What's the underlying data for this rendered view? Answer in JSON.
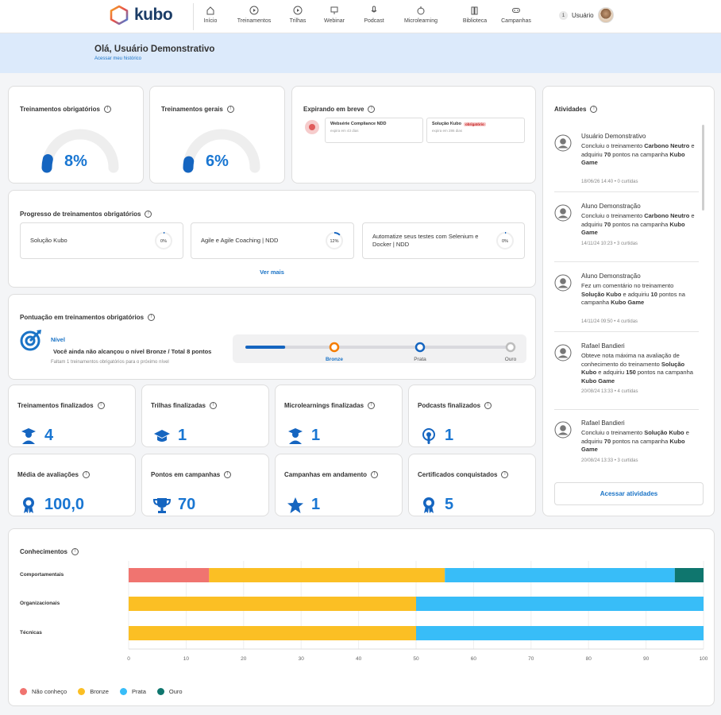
{
  "brand": {
    "name": "kubo"
  },
  "nav": [
    {
      "label": "Início",
      "icon": "home-icon"
    },
    {
      "label": "Treinamentos",
      "icon": "play-icon"
    },
    {
      "label": "Trilhas",
      "icon": "play-icon"
    },
    {
      "label": "Webinar",
      "icon": "webinar-icon"
    },
    {
      "label": "Podcast",
      "icon": "microphone-icon"
    },
    {
      "label": "Microlearning",
      "icon": "microlearning-icon"
    },
    {
      "label": "Biblioteca",
      "icon": "library-icon"
    },
    {
      "label": "Campanhas",
      "icon": "gamepad-icon"
    }
  ],
  "user": {
    "notifications": "1",
    "name": "Usuário"
  },
  "hero": {
    "greeting": "Olá, Usuário Demonstrativo",
    "history_link": "Acessar meu histórico"
  },
  "mandatory": {
    "title": "Treinamentos obrigatórios",
    "percent_label": "8%",
    "progress": 0.08
  },
  "general": {
    "title": "Treinamentos gerais",
    "percent_label": "6%",
    "progress": 0.06
  },
  "expiring": {
    "title": "Expirando em breve",
    "items": [
      {
        "name": "Websérie Compliance NDD",
        "sub": "expira em 43 dias",
        "tag": ""
      },
      {
        "name": "Solução Kubo",
        "sub": "expira em 286 dias",
        "tag": "obrigatório"
      }
    ]
  },
  "progress": {
    "title": "Progresso de treinamentos obrigatórios",
    "items": [
      {
        "name": "Solução Kubo",
        "label": "0%",
        "value": 0.0
      },
      {
        "name": "Agile e Agile Coaching | NDD",
        "label": "12%",
        "value": 0.12
      },
      {
        "name": "Automatize seus testes com Selenium e Docker | NDD",
        "label": "0%",
        "value": 0.0
      }
    ],
    "more": "Ver mais"
  },
  "score": {
    "title": "Pontuação em treinamentos obrigatórios",
    "level_label": "Nível",
    "status": "Você ainda não alcançou o nível Bronze / Total 8 pontos",
    "hint": "Faltam 1 treinamentos obrigatórios para o próximo nível",
    "levels": [
      "Bronze",
      "Prata",
      "Ouro"
    ],
    "progress": 0.08
  },
  "stats": [
    {
      "title": "Treinamentos finalizados",
      "value": "4",
      "icon": "graduate-icon"
    },
    {
      "title": "Trilhas finalizadas",
      "value": "1",
      "icon": "graduation-cap-icon"
    },
    {
      "title": "Microlearnings finalizadas",
      "value": "1",
      "icon": "graduate-icon"
    },
    {
      "title": "Podcasts finalizados",
      "value": "1",
      "icon": "podcast-icon"
    },
    {
      "title": "Média de avaliações",
      "value": "100,0",
      "icon": "award-icon"
    },
    {
      "title": "Pontos em campanhas",
      "value": "70",
      "icon": "trophy-icon"
    },
    {
      "title": "Campanhas em andamento",
      "value": "1",
      "icon": "star-icon"
    },
    {
      "title": "Certificados conquistados",
      "value": "5",
      "icon": "award-icon"
    }
  ],
  "activities": {
    "title": "Atividades",
    "items": [
      {
        "name": "Usuário Demonstrativo",
        "parts": [
          [
            "Concluiu o treinamento ",
            false
          ],
          [
            "Carbono Neutro",
            true
          ],
          [
            " e adquiriu ",
            false
          ],
          [
            "70",
            true
          ],
          [
            " pontos na campanha ",
            false
          ],
          [
            "Kubo Game",
            true
          ]
        ],
        "meta": "18/06/26 14:40 • 0 curtidas"
      },
      {
        "name": "Aluno Demonstração",
        "parts": [
          [
            "Concluiu o treinamento ",
            false
          ],
          [
            "Carbono Neutro",
            true
          ],
          [
            " e adquiriu ",
            false
          ],
          [
            "70",
            true
          ],
          [
            " pontos na campanha ",
            false
          ],
          [
            "Kubo Game",
            true
          ]
        ],
        "meta": "14/11/24 10:23 • 3 curtidas"
      },
      {
        "name": "Aluno Demonstração",
        "parts": [
          [
            "Fez um comentário no treinamento ",
            false
          ],
          [
            "Solução Kubo",
            true
          ],
          [
            " e adquiriu ",
            false
          ],
          [
            "10",
            true
          ],
          [
            " pontos na campanha ",
            false
          ],
          [
            "Kubo Game",
            true
          ]
        ],
        "meta": "14/11/24 09:50 • 4 curtidas"
      },
      {
        "name": "Rafael Bandieri",
        "parts": [
          [
            "Obteve nota máxima na avaliação de conhecimento do treinamento ",
            false
          ],
          [
            "Solução Kubo",
            true
          ],
          [
            " e adquiriu ",
            false
          ],
          [
            "150",
            true
          ],
          [
            " pontos na campanha ",
            false
          ],
          [
            "Kubo Game",
            true
          ]
        ],
        "meta": "20/08/24 13:33 • 4 curtidas"
      },
      {
        "name": "Rafael Bandieri",
        "parts": [
          [
            "Concluiu o treinamento ",
            false
          ],
          [
            "Solução Kubo",
            true
          ],
          [
            " e adquiriu ",
            false
          ],
          [
            "70",
            true
          ],
          [
            " pontos na campanha ",
            false
          ],
          [
            "Kubo Game",
            true
          ]
        ],
        "meta": "20/08/24 13:33 • 3 curtidas"
      }
    ],
    "button": "Acessar atividades"
  },
  "knowledge": {
    "title": "Conhecimentos"
  },
  "chart_data": {
    "type": "bar",
    "orientation": "horizontal",
    "stacked": true,
    "categories": [
      "Comportamentais",
      "Organizacionais",
      "Técnicas"
    ],
    "series": [
      {
        "name": "Não conheço",
        "color": "#f07470",
        "values": [
          14,
          0,
          0
        ]
      },
      {
        "name": "Bronze",
        "color": "#fbbf24",
        "values": [
          41,
          50,
          50
        ]
      },
      {
        "name": "Prata",
        "color": "#38bdf8",
        "values": [
          40,
          50,
          50
        ]
      },
      {
        "name": "Ouro",
        "color": "#0f766e",
        "values": [
          5,
          0,
          0
        ]
      }
    ],
    "xlim": [
      0,
      100
    ],
    "xticks": [
      0,
      10,
      20,
      30,
      40,
      50,
      60,
      70,
      80,
      90,
      100
    ],
    "legend": "bottom-left",
    "grid": true
  }
}
